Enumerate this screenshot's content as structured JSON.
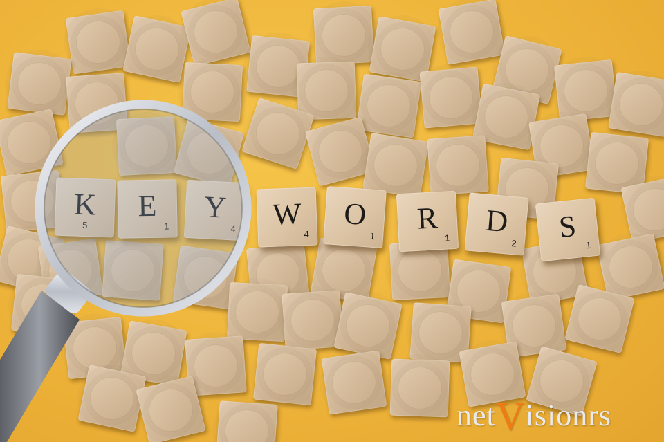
{
  "tiles": [
    {
      "letter": "K",
      "score": "5"
    },
    {
      "letter": "E",
      "score": "1"
    },
    {
      "letter": "Y",
      "score": "4"
    },
    {
      "letter": "W",
      "score": "4"
    },
    {
      "letter": "O",
      "score": "1"
    },
    {
      "letter": "R",
      "score": "1"
    },
    {
      "letter": "D",
      "score": "2"
    },
    {
      "letter": "S",
      "score": "1"
    }
  ],
  "watermark": {
    "prefix": "net",
    "v": "V",
    "suffix": "isionrs",
    "accent_color": "#f07b14"
  },
  "colors": {
    "background": "#eeb43a",
    "tile": "#dcc4a5",
    "magnifier_rim": "#c9ced6"
  },
  "icons": [
    "magnifying-glass-icon"
  ]
}
